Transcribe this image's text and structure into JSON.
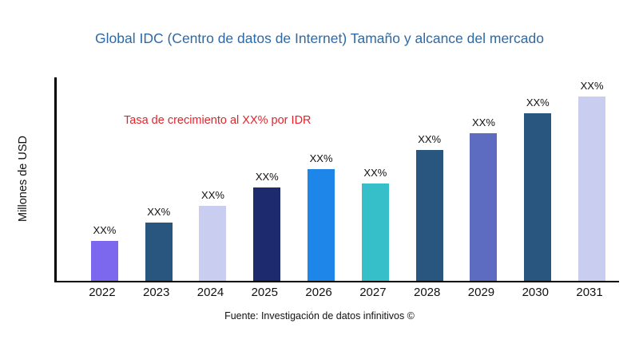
{
  "chart_data": {
    "type": "bar",
    "title": "Global IDC (Centro de datos de Internet) Tamaño y alcance del mercado",
    "ylabel": "Millones de USD",
    "xlabel": "",
    "categories": [
      "2022",
      "2023",
      "2024",
      "2025",
      "2026",
      "2027",
      "2028",
      "2029",
      "2030",
      "2031"
    ],
    "values": [
      50,
      73,
      94,
      117,
      140,
      122,
      164,
      185,
      210,
      231
    ],
    "value_labels": [
      "XX%",
      "XX%",
      "XX%",
      "XX%",
      "XX%",
      "XX%",
      "XX%",
      "XX%",
      "XX%",
      "XX%"
    ],
    "bar_colors": [
      "#7B68EE",
      "#28567E",
      "#C9CDF0",
      "#1E2A6E",
      "#1E86E8",
      "#36BFC9",
      "#28567E",
      "#5D6BC0",
      "#28567E",
      "#C9CDF0"
    ],
    "ylim": [
      0,
      255
    ],
    "y_tick_labels_visible": false,
    "grid": false,
    "legend": "none",
    "annotation": "Tasa de crecimiento al XX% por IDR",
    "source": "Fuente: Investigación de datos infinitivos ©"
  },
  "colors": {
    "title_text": "#2B6AA8",
    "annotation_text": "#E3242B",
    "axis": "#000000"
  }
}
